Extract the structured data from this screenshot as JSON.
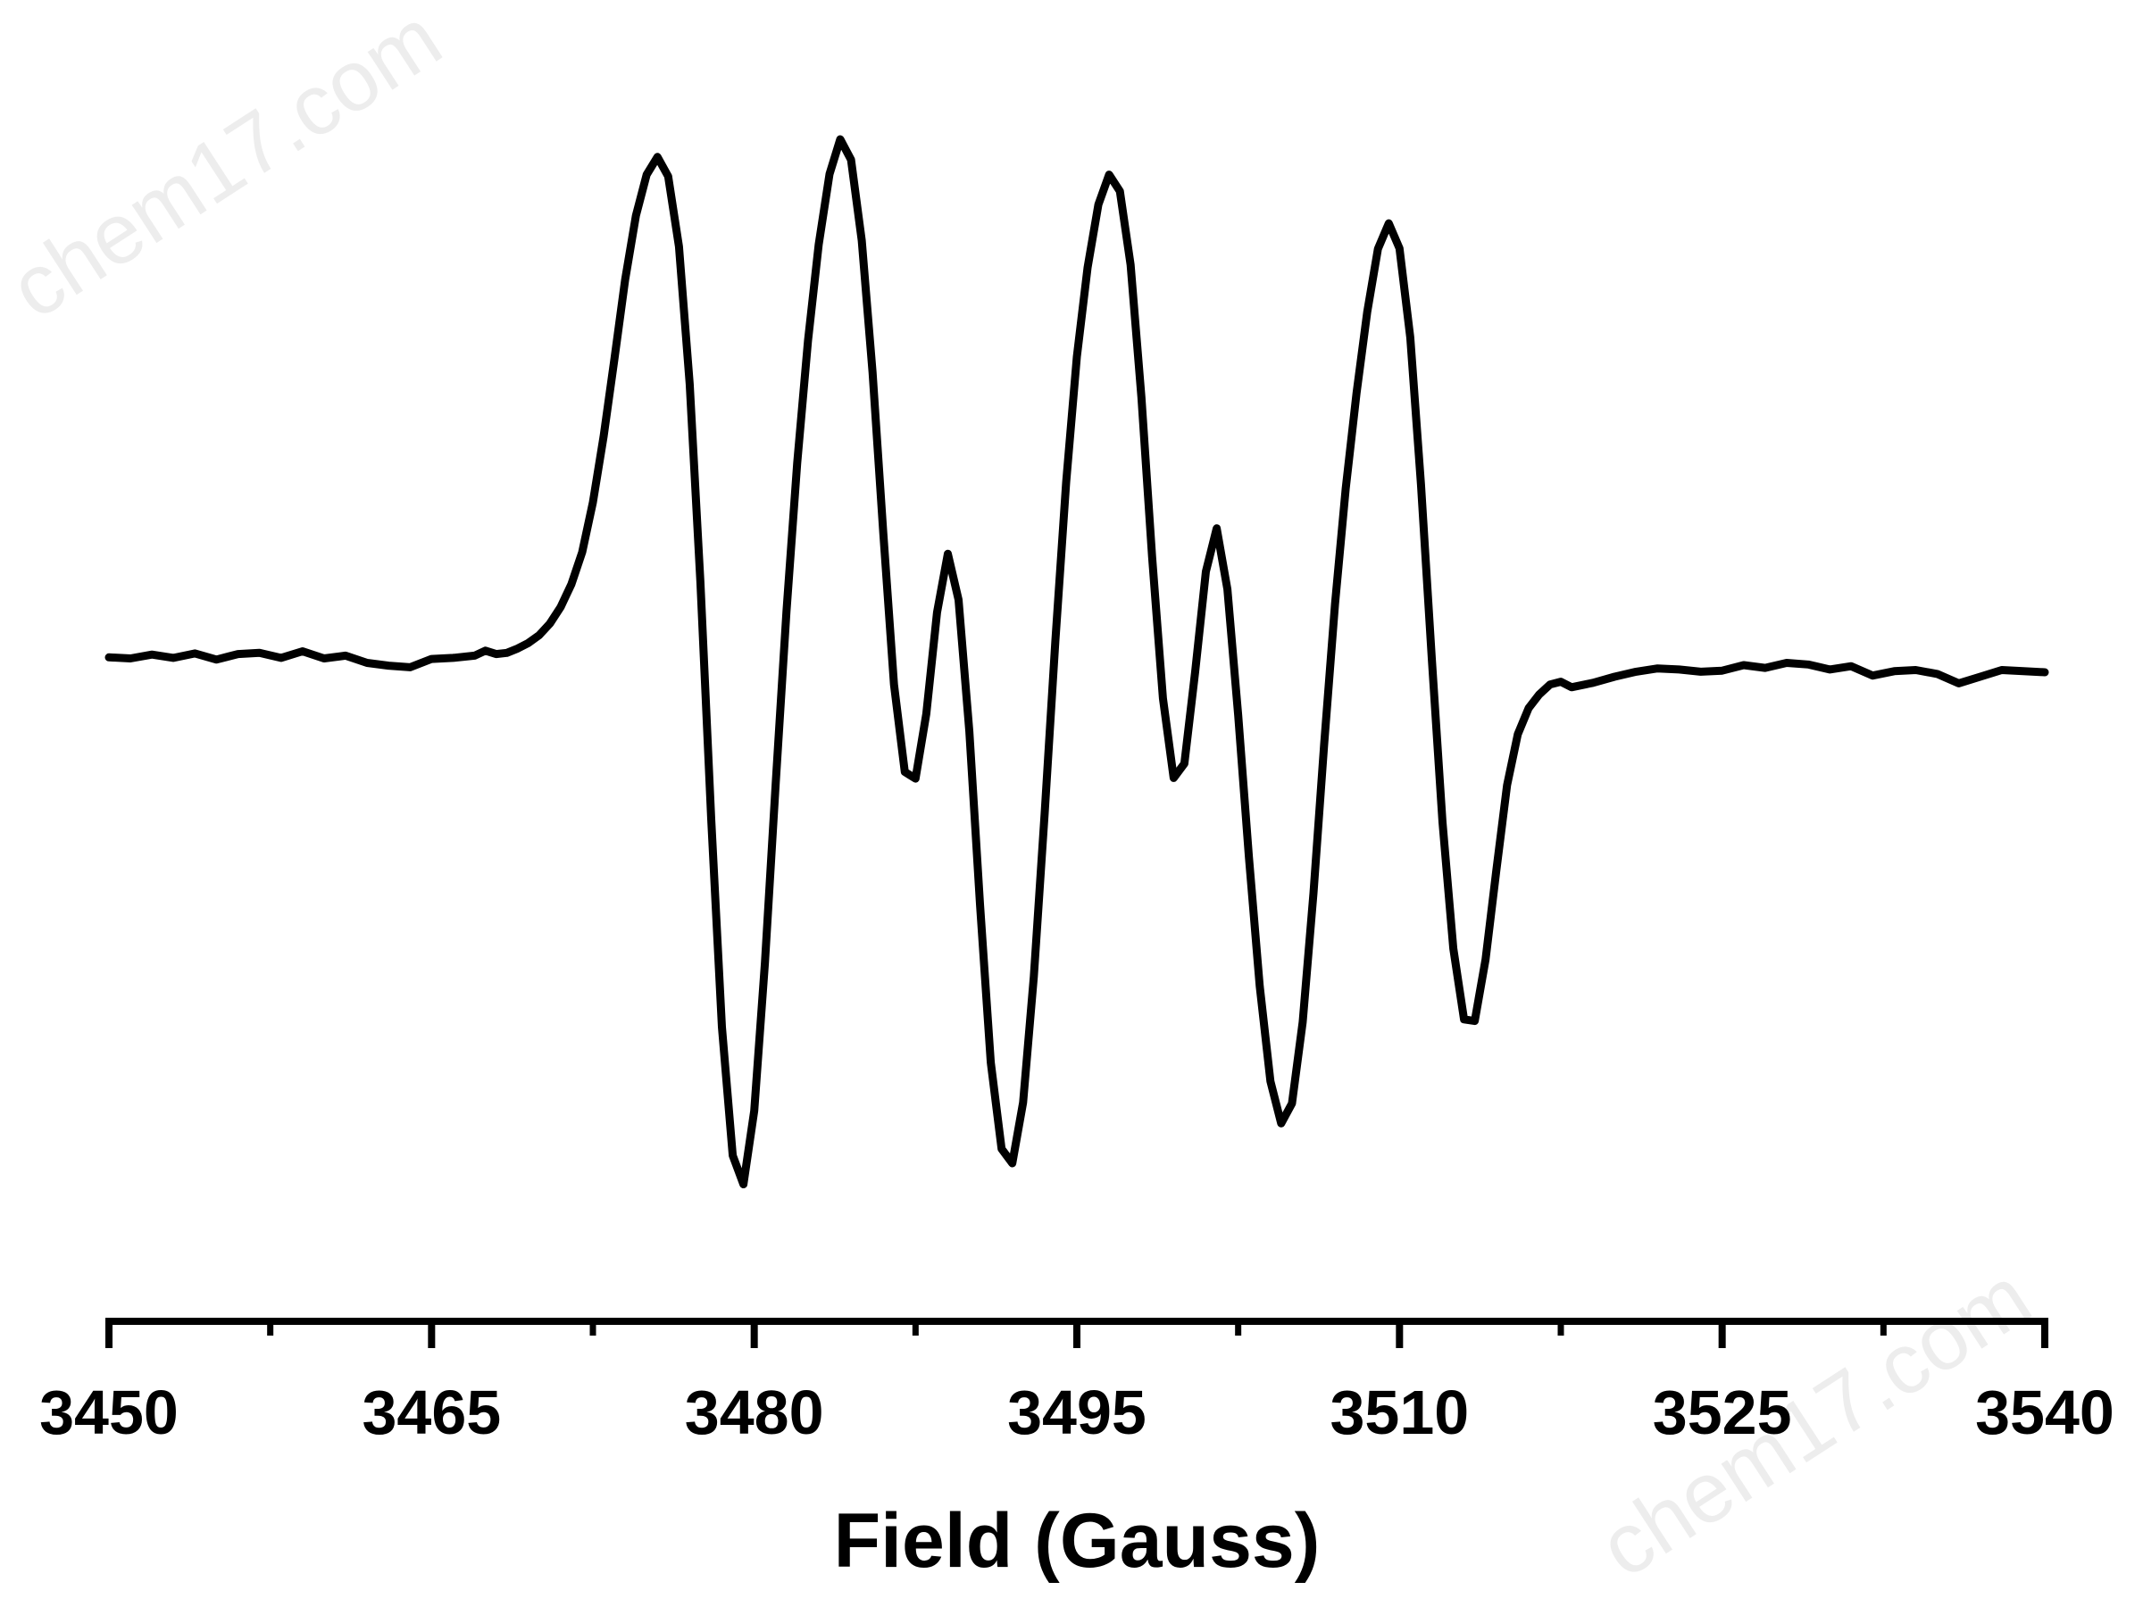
{
  "chart_data": {
    "type": "line",
    "title": "",
    "xlabel": "Field (Gauss)",
    "ylabel": "",
    "xlim": [
      3450,
      3540
    ],
    "ylim": [
      -1.0,
      1.0
    ],
    "x_major_ticks": [
      3450,
      3465,
      3480,
      3495,
      3510,
      3525,
      3540
    ],
    "x_minor_ticks": [
      3457.5,
      3472.5,
      3487.5,
      3502.5,
      3517.5,
      3532.5
    ],
    "x_tick_labels": [
      "3450",
      "3465",
      "3480",
      "3495",
      "3510",
      "3525",
      "3540"
    ],
    "grid": false,
    "legend": "none",
    "y_axis_visible": false,
    "line_color": "#000000",
    "series": [
      {
        "x": [
          3450.0,
          3451.0,
          3452.0,
          3453.0,
          3454.0,
          3455.0,
          3456.0,
          3457.0,
          3458.0,
          3459.0,
          3460.0,
          3461.0,
          3462.0,
          3463.0,
          3464.0,
          3465.0,
          3466.0,
          3467.0,
          3467.5,
          3468.0,
          3468.5,
          3469.0,
          3469.5,
          3470.0,
          3470.5,
          3471.0,
          3471.5,
          3472.0,
          3472.5,
          3473.0,
          3473.5,
          3474.0,
          3474.5,
          3475.0,
          3475.5,
          3476.0,
          3476.5,
          3477.0,
          3477.5,
          3478.0,
          3478.5,
          3479.0,
          3479.5,
          3480.0,
          3480.5,
          3481.0,
          3481.5,
          3482.0,
          3482.5,
          3483.0,
          3483.5,
          3484.0,
          3484.5,
          3485.0,
          3485.5,
          3486.0,
          3486.5,
          3487.0,
          3487.5,
          3488.0,
          3488.5,
          3489.0,
          3489.5,
          3490.0,
          3490.5,
          3491.0,
          3491.5,
          3492.0,
          3492.5,
          3493.0,
          3493.5,
          3494.0,
          3494.5,
          3495.0,
          3495.5,
          3496.0,
          3496.5,
          3497.0,
          3497.5,
          3498.0,
          3498.5,
          3499.0,
          3499.5,
          3500.0,
          3500.5,
          3501.0,
          3501.5,
          3502.0,
          3502.5,
          3503.0,
          3503.5,
          3504.0,
          3504.5,
          3505.0,
          3505.5,
          3506.0,
          3506.5,
          3507.0,
          3507.5,
          3508.0,
          3508.5,
          3509.0,
          3509.5,
          3510.0,
          3510.5,
          3511.0,
          3511.5,
          3512.0,
          3512.5,
          3513.0,
          3513.5,
          3514.0,
          3514.5,
          3515.0,
          3515.5,
          3516.0,
          3516.5,
          3517.0,
          3517.5,
          3518.0,
          3519.0,
          3520.0,
          3521.0,
          3522.0,
          3523.0,
          3524.0,
          3525.0,
          3526.0,
          3527.0,
          3528.0,
          3529.0,
          3530.0,
          3531.0,
          3532.0,
          3533.0,
          3534.0,
          3535.0,
          3536.0,
          3537.0,
          3538.0,
          3539.0,
          3540.0
        ],
        "y": [
          0.006,
          0.004,
          0.011,
          0.005,
          0.013,
          0.002,
          0.012,
          0.014,
          0.005,
          0.017,
          0.004,
          0.009,
          -0.004,
          -0.009,
          -0.012,
          0.003,
          0.005,
          0.009,
          0.018,
          0.012,
          0.014,
          0.022,
          0.032,
          0.046,
          0.067,
          0.097,
          0.138,
          0.196,
          0.286,
          0.405,
          0.545,
          0.688,
          0.804,
          0.878,
          0.91,
          0.875,
          0.748,
          0.5,
          0.142,
          -0.286,
          -0.662,
          -0.894,
          -0.946,
          -0.813,
          -0.545,
          -0.22,
          0.089,
          0.357,
          0.578,
          0.752,
          0.879,
          0.942,
          0.905,
          0.759,
          0.521,
          0.231,
          -0.043,
          -0.201,
          -0.213,
          -0.096,
          0.087,
          0.193,
          0.11,
          -0.128,
          -0.442,
          -0.726,
          -0.882,
          -0.908,
          -0.798,
          -0.571,
          -0.277,
          0.035,
          0.322,
          0.549,
          0.71,
          0.824,
          0.878,
          0.848,
          0.715,
          0.476,
          0.187,
          -0.068,
          -0.212,
          -0.186,
          -0.02,
          0.161,
          0.239,
          0.129,
          -0.099,
          -0.355,
          -0.588,
          -0.76,
          -0.836,
          -0.8,
          -0.653,
          -0.42,
          -0.15,
          0.102,
          0.311,
          0.483,
          0.63,
          0.744,
          0.79,
          0.745,
          0.584,
          0.318,
          0.004,
          -0.292,
          -0.52,
          -0.648,
          -0.651,
          -0.54,
          -0.38,
          -0.225,
          -0.133,
          -0.086,
          -0.061,
          -0.043,
          -0.038,
          -0.048,
          -0.04,
          -0.029,
          -0.02,
          -0.014,
          -0.016,
          -0.02,
          -0.018,
          -0.008,
          -0.013,
          -0.004,
          -0.007,
          -0.016,
          -0.01,
          -0.027,
          -0.019,
          -0.017,
          -0.024,
          -0.041,
          -0.029,
          -0.017,
          -0.019,
          -0.021
        ]
      }
    ]
  },
  "watermarks": [
    "chem17.com",
    "chem17.com"
  ]
}
